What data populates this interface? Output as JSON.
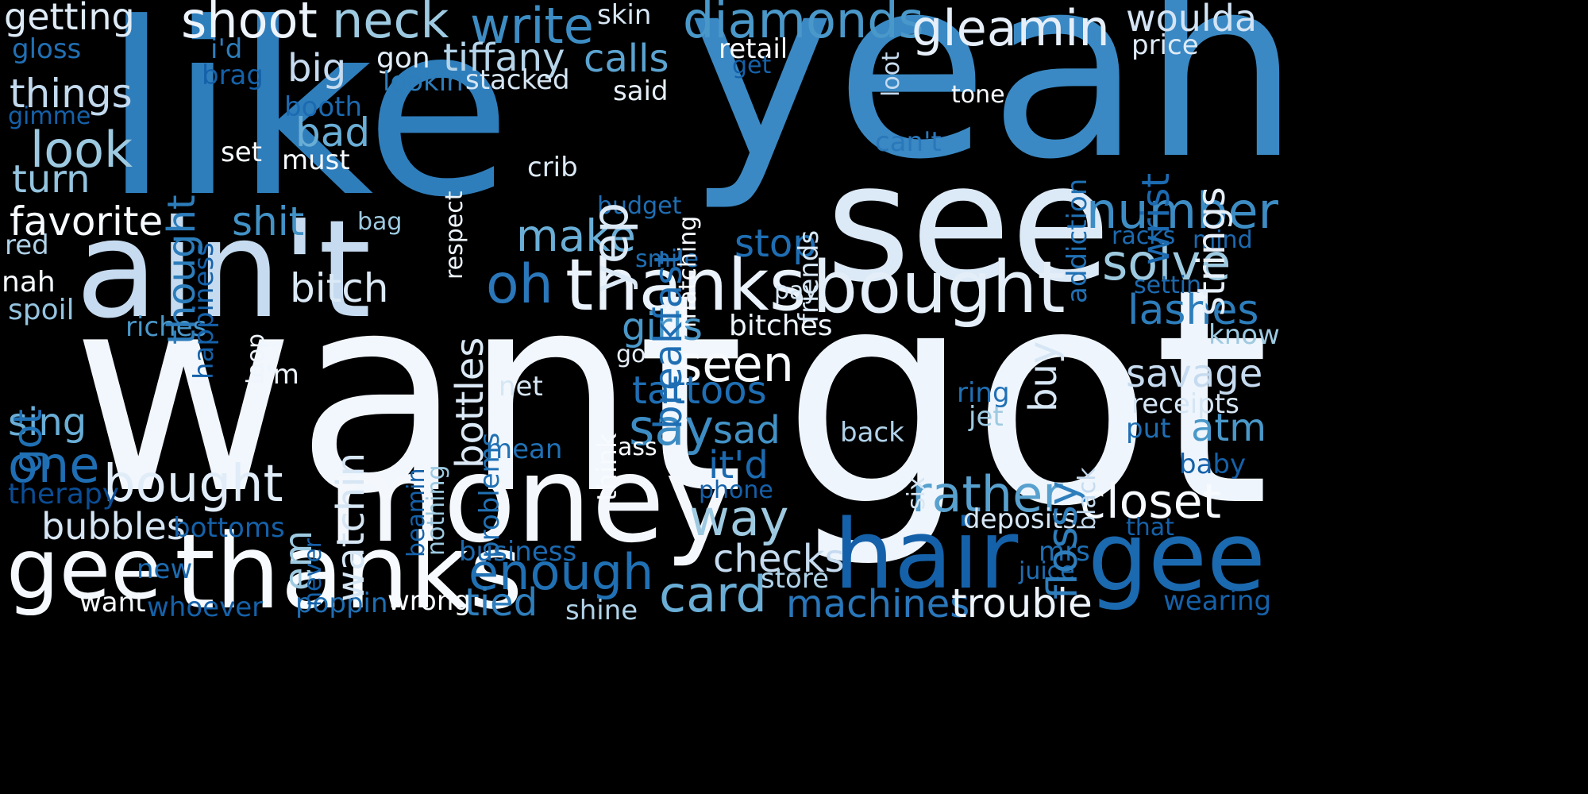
{
  "words": [
    {
      "text": "like",
      "color": "#2f7ebc"
    },
    {
      "text": "yeah",
      "color": "#3a89c4"
    },
    {
      "text": "want",
      "color": "#f2f7fd"
    },
    {
      "text": "got",
      "color": "#eef5fc"
    },
    {
      "text": "see",
      "color": "#dce9f6"
    },
    {
      "text": "ain't",
      "color": "#c6dbef"
    },
    {
      "text": "money",
      "color": "#f4f8fd"
    },
    {
      "text": "thanks",
      "color": "#f7fbff"
    },
    {
      "text": "thanks",
      "color": "#eaf2fb"
    },
    {
      "text": "bought",
      "color": "#e3eef9"
    },
    {
      "text": "bought",
      "color": "#e0ecf8"
    },
    {
      "text": "hair",
      "color": "#1561a9"
    },
    {
      "text": "gee",
      "color": "#1b69af"
    },
    {
      "text": "gee",
      "color": "#f5f9fe"
    },
    {
      "text": "oh",
      "color": "#2a77ba"
    },
    {
      "text": "yep",
      "color": "#dbe9f6"
    },
    {
      "text": "shoot",
      "color": "#eef4fb"
    },
    {
      "text": "neck",
      "color": "#9ecae1"
    },
    {
      "text": "write",
      "color": "#3d8dc4"
    },
    {
      "text": "diamonds",
      "color": "#4a98c9"
    },
    {
      "text": "gleamin",
      "color": "#e6eff9"
    },
    {
      "text": "woulda",
      "color": "#d4e4f4"
    },
    {
      "text": "getting",
      "color": "#deebf7"
    },
    {
      "text": "skin",
      "color": "#d6e6f4"
    },
    {
      "text": "tiffany",
      "color": "#b5d4e9"
    },
    {
      "text": "calls",
      "color": "#5ba3d0"
    },
    {
      "text": "gon",
      "color": "#e3eef9"
    },
    {
      "text": "big",
      "color": "#c6dbef"
    },
    {
      "text": "things",
      "color": "#c2d9ee"
    },
    {
      "text": "look",
      "color": "#9dcae1"
    },
    {
      "text": "turn",
      "color": "#94c4df"
    },
    {
      "text": "favorite",
      "color": "#f7fbff"
    },
    {
      "text": "shit",
      "color": "#4292c6"
    },
    {
      "text": "bad",
      "color": "#6aaed6"
    },
    {
      "text": "make",
      "color": "#6aaed6"
    },
    {
      "text": "stop",
      "color": "#1f6eb3"
    },
    {
      "text": "number",
      "color": "#3d8dc4"
    },
    {
      "text": "solve",
      "color": "#9ecae1"
    },
    {
      "text": "lashes",
      "color": "#2d7dbb"
    },
    {
      "text": "savage",
      "color": "#c6dbef"
    },
    {
      "text": "atm",
      "color": "#4a98c9"
    },
    {
      "text": "closet",
      "color": "#f7fbff"
    },
    {
      "text": "rather",
      "color": "#58a1cf"
    },
    {
      "text": "seen",
      "color": "#f7fbff"
    },
    {
      "text": "bitch",
      "color": "#dbe9f6"
    },
    {
      "text": "girls",
      "color": "#4a98c9"
    },
    {
      "text": "bitches",
      "color": "#eef5fc"
    },
    {
      "text": "tattoos",
      "color": "#1f6eb3"
    },
    {
      "text": "say",
      "color": "#3d8dc4"
    },
    {
      "text": "sad",
      "color": "#4292c6"
    },
    {
      "text": "it'd",
      "color": "#1c6ab0"
    },
    {
      "text": "way",
      "color": "#9ecae1"
    },
    {
      "text": "card",
      "color": "#6aaed6"
    },
    {
      "text": "checks",
      "color": "#c6dbef"
    },
    {
      "text": "enough",
      "color": "#2070b4"
    },
    {
      "text": "tied",
      "color": "#2f7ebc"
    },
    {
      "text": "machines",
      "color": "#2a77ba"
    },
    {
      "text": "trouble",
      "color": "#eef5fc"
    },
    {
      "text": "one",
      "color": "#1f6eb3"
    },
    {
      "text": "sing",
      "color": "#6aaed6"
    },
    {
      "text": "bubbles",
      "color": "#d6e6f4"
    },
    {
      "text": "bottoms",
      "color": "#1561a9"
    },
    {
      "text": "therapy",
      "color": "#0b4d94"
    },
    {
      "text": "spoil",
      "color": "#94c4df"
    },
    {
      "text": "nah",
      "color": "#f7fbff"
    },
    {
      "text": "red",
      "color": "#b0d2e8"
    },
    {
      "text": "riches",
      "color": "#4a98c9"
    },
    {
      "text": "gloss",
      "color": "#2070b4"
    },
    {
      "text": "gimme",
      "color": "#1561a9"
    },
    {
      "text": "i'd",
      "color": "#2d7dbb"
    },
    {
      "text": "brag",
      "color": "#1561a9"
    },
    {
      "text": "booth",
      "color": "#1c6ab0"
    },
    {
      "text": "set",
      "color": "#f7fbff"
    },
    {
      "text": "must",
      "color": "#f7fbff"
    },
    {
      "text": "lookin",
      "color": "#2d7dbb"
    },
    {
      "text": "stacked",
      "color": "#d6e6f4"
    },
    {
      "text": "said",
      "color": "#e6eff9"
    },
    {
      "text": "crib",
      "color": "#dbe9f6"
    },
    {
      "text": "retail",
      "color": "#f7fbff"
    },
    {
      "text": "get",
      "color": "#1561a9"
    },
    {
      "text": "price",
      "color": "#deebf7"
    },
    {
      "text": "tone",
      "color": "#f7fbff"
    },
    {
      "text": "can't",
      "color": "#2a77ba"
    },
    {
      "text": "budget",
      "color": "#1f6eb3"
    },
    {
      "text": "bag",
      "color": "#9ecae1"
    },
    {
      "text": "smile",
      "color": "#1f6eb3"
    },
    {
      "text": "pay",
      "color": "#d6e6f4"
    },
    {
      "text": "racks",
      "color": "#1c6ab0"
    },
    {
      "text": "mind",
      "color": "#1c6ab0"
    },
    {
      "text": "settin",
      "color": "#1c6ab0"
    },
    {
      "text": "know",
      "color": "#9ecae1"
    },
    {
      "text": "receipts",
      "color": "#d6e6f4"
    },
    {
      "text": "put",
      "color": "#1f6eb3"
    },
    {
      "text": "baby",
      "color": "#1561a9"
    },
    {
      "text": "wearing",
      "color": "#1561a9"
    },
    {
      "text": "that",
      "color": "#1561a9"
    },
    {
      "text": "mrs",
      "color": "#1f6eb3"
    },
    {
      "text": "juice",
      "color": "#1f6eb3"
    },
    {
      "text": "deposits",
      "color": "#d6e6f4"
    },
    {
      "text": "ring",
      "color": "#2070b4"
    },
    {
      "text": "jet",
      "color": "#9ecae1"
    },
    {
      "text": "back",
      "color": "#b0d2e8"
    },
    {
      "text": "store",
      "color": "#b0d2e8"
    },
    {
      "text": "phone",
      "color": "#1561a9"
    },
    {
      "text": "go",
      "color": "#e6eff9"
    },
    {
      "text": "ass",
      "color": "#f7fbff"
    },
    {
      "text": "mean",
      "color": "#2070b4"
    },
    {
      "text": "net",
      "color": "#d6e6f4"
    },
    {
      "text": "i'm",
      "color": "#eef5fc"
    },
    {
      "text": "business",
      "color": "#1c6ab0"
    },
    {
      "text": "new",
      "color": "#1c6ab0"
    },
    {
      "text": "want",
      "color": "#f7fbff"
    },
    {
      "text": "whoever",
      "color": "#1561a9"
    },
    {
      "text": "poppin",
      "color": "#1f6eb3"
    },
    {
      "text": "wrong",
      "color": "#f7fbff"
    },
    {
      "text": "shine",
      "color": "#b0d2e8"
    },
    {
      "text": "got",
      "color": "#2070b4"
    },
    {
      "text": "happiness",
      "color": "#1561a9"
    },
    {
      "text": "thought",
      "color": "#2d7dbb"
    },
    {
      "text": "bottles",
      "color": "#dbe9f6"
    },
    {
      "text": "watchin",
      "color": "#d6e6f4"
    },
    {
      "text": "em",
      "color": "#9ecae1"
    },
    {
      "text": "loop",
      "color": "#eef5fc"
    },
    {
      "text": "respect",
      "color": "#eef5fc"
    },
    {
      "text": "breakfast",
      "color": "#1f6eb3"
    },
    {
      "text": "matching",
      "color": "#f7fbff"
    },
    {
      "text": "friends",
      "color": "#d6e6f4"
    },
    {
      "text": "loot",
      "color": "#c6dbef"
    },
    {
      "text": "addiction",
      "color": "#2070b4"
    },
    {
      "text": "wrist",
      "color": "#1c6ab0"
    },
    {
      "text": "strings",
      "color": "#e6eff9"
    },
    {
      "text": "buy",
      "color": "#d6e6f4"
    },
    {
      "text": "flossy",
      "color": "#2f7ebc"
    },
    {
      "text": "six",
      "color": "#d6e6f4"
    },
    {
      "text": "black",
      "color": "#c6dbef"
    },
    {
      "text": "beamin",
      "color": "#1561a9"
    },
    {
      "text": "nothing",
      "color": "#9ecae1"
    },
    {
      "text": "problems",
      "color": "#2070b4"
    },
    {
      "text": "never",
      "color": "#1561a9"
    },
    {
      "text": "think",
      "color": "#f7fbff"
    }
  ]
}
